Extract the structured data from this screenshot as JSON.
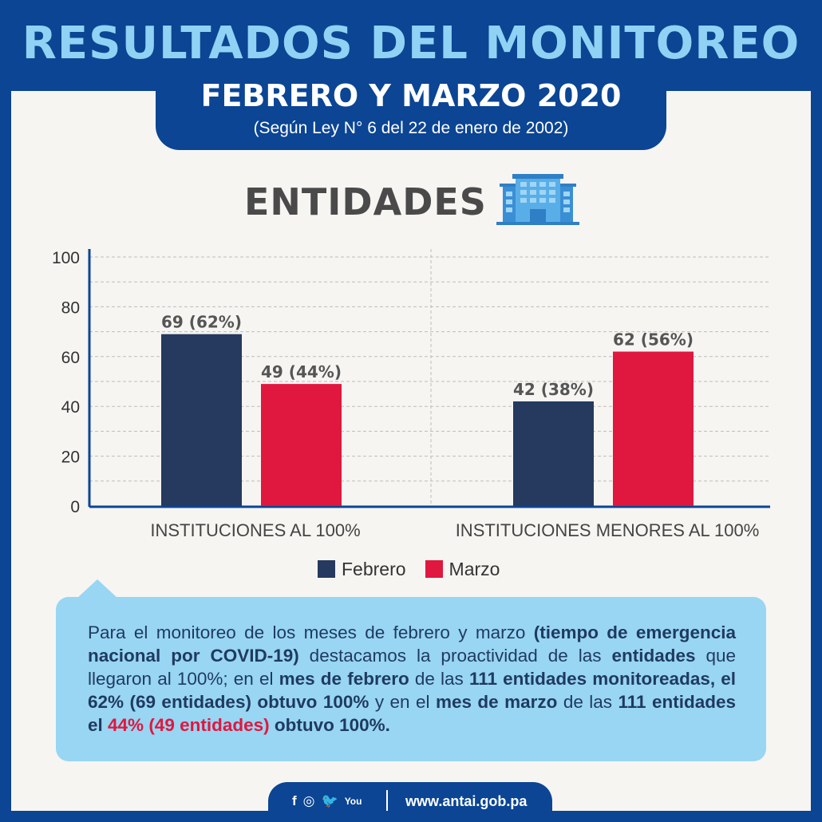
{
  "header": {
    "title": "RESULTADOS DEL MONITOREO",
    "subtitle": "FEBRERO Y MARZO 2020",
    "law_note": "(Según Ley N° 6 del 22 de enero de 2002)"
  },
  "section": {
    "title": "ENTIDADES",
    "icon": "building-icon"
  },
  "chart_data": {
    "type": "bar",
    "categories": [
      "INSTITUCIONES AL 100%",
      "INSTITUCIONES MENORES AL 100%"
    ],
    "series": [
      {
        "name": "Febrero",
        "values": [
          69,
          42
        ],
        "labels": [
          "69 (62%)",
          "42 (38%)"
        ],
        "color": "#253a5e"
      },
      {
        "name": "Marzo",
        "values": [
          49,
          62
        ],
        "labels": [
          "49 (44%)",
          "62 (56%)"
        ],
        "color": "#e0173f"
      }
    ],
    "yticks": [
      0,
      20,
      40,
      60,
      80,
      100
    ],
    "ylim": [
      0,
      100
    ],
    "grid": true,
    "legend_position": "bottom"
  },
  "callout": {
    "t1": "Para el monitoreo de los meses de febrero y marzo ",
    "b1": "(tiempo de emergencia nacional por COVID-19)",
    "t2": " destacamos la proactividad de las ",
    "b2": "entidades",
    "t3": " que llegaron al 100%; en el ",
    "b3": "mes de febrero",
    "t4": " de las ",
    "b4": "111 entidades monitoreadas, el 62% (69 entidades) obtuvo 100%",
    "t5": " y en el ",
    "b5": "mes de marzo",
    "t6": " de las ",
    "b6": "111 entidades el",
    "t7": " ",
    "hl": "44% (49 entidades)",
    "t8": " ",
    "b7": "obtuvo 100%."
  },
  "footer": {
    "social": [
      "f",
      "◎",
      "🐦",
      "You"
    ],
    "url": "www.antai.gob.pa"
  },
  "colors": {
    "brand_blue": "#0b4594",
    "title_light_blue": "#8fd2f4",
    "febrero": "#253a5e",
    "marzo": "#e0173f",
    "callout_bg": "#98d6f3"
  }
}
